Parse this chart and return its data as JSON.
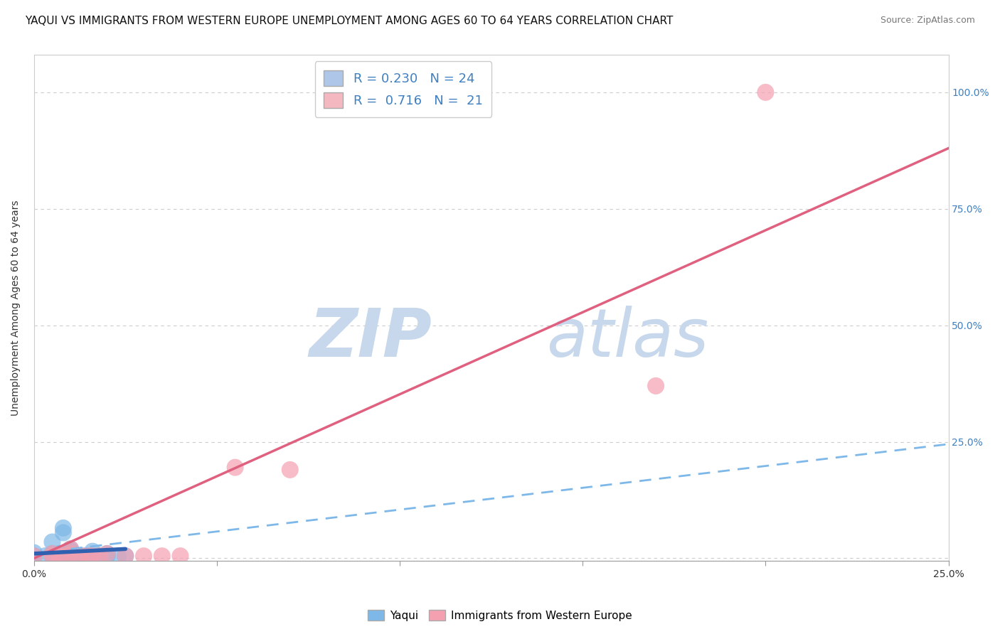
{
  "title": "YAQUI VS IMMIGRANTS FROM WESTERN EUROPE UNEMPLOYMENT AMONG AGES 60 TO 64 YEARS CORRELATION CHART",
  "source": "Source: ZipAtlas.com",
  "ylabel": "Unemployment Among Ages 60 to 64 years",
  "xlim": [
    0.0,
    0.25
  ],
  "ylim": [
    -0.005,
    1.08
  ],
  "xticks": [
    0.0,
    0.05,
    0.1,
    0.15,
    0.2,
    0.25
  ],
  "xticklabels": [
    "0.0%",
    "",
    "",
    "",
    "",
    "25.0%"
  ],
  "yticks": [
    0.0,
    0.25,
    0.5,
    0.75,
    1.0
  ],
  "yticklabels_right": [
    "",
    "25.0%",
    "50.0%",
    "75.0%",
    "100.0%"
  ],
  "watermark_zip": "ZIP",
  "watermark_atlas": "atlas",
  "legend_entries": [
    {
      "label_r": "R = 0.230",
      "label_n": "N = 24",
      "color": "#aec6e8"
    },
    {
      "label_r": "R =  0.716",
      "label_n": "N =  21",
      "color": "#f4b8c1"
    }
  ],
  "yaqui_scatter_x": [
    0.0,
    0.0,
    0.003,
    0.005,
    0.005,
    0.005,
    0.007,
    0.007,
    0.008,
    0.008,
    0.01,
    0.01,
    0.01,
    0.01,
    0.012,
    0.013,
    0.014,
    0.015,
    0.016,
    0.018,
    0.02,
    0.02,
    0.023,
    0.025
  ],
  "yaqui_scatter_y": [
    0.005,
    0.012,
    0.005,
    0.005,
    0.01,
    0.035,
    0.005,
    0.01,
    0.055,
    0.065,
    0.005,
    0.01,
    0.015,
    0.02,
    0.005,
    0.005,
    0.005,
    0.005,
    0.015,
    0.005,
    0.005,
    0.01,
    0.005,
    0.005
  ],
  "immigrants_scatter_x": [
    0.0,
    0.005,
    0.005,
    0.007,
    0.008,
    0.01,
    0.01,
    0.012,
    0.013,
    0.015,
    0.016,
    0.018,
    0.02,
    0.025,
    0.03,
    0.035,
    0.04,
    0.055,
    0.07,
    0.17,
    0.2
  ],
  "immigrants_scatter_y": [
    0.005,
    0.005,
    0.01,
    0.005,
    0.005,
    0.01,
    0.02,
    0.005,
    0.005,
    0.005,
    0.005,
    0.005,
    0.01,
    0.005,
    0.005,
    0.005,
    0.005,
    0.195,
    0.19,
    0.37,
    1.0
  ],
  "yaqui_line_x": [
    0.0,
    0.025
  ],
  "yaqui_line_y": [
    0.01,
    0.02
  ],
  "yaqui_dash_line_x": [
    0.01,
    0.25
  ],
  "yaqui_dash_line_y": [
    0.02,
    0.245
  ],
  "immigrants_line_x": [
    0.0,
    0.25
  ],
  "immigrants_line_y": [
    0.0,
    0.88
  ],
  "scatter_color_yaqui": "#7eb8e8",
  "scatter_color_immigrants": "#f4a0b0",
  "line_color_yaqui_solid": "#3060b0",
  "line_color_yaqui_dash": "#7eb8e8",
  "line_color_immigrants": "#e06080",
  "grid_color": "#cccccc",
  "background_color": "#ffffff",
  "title_fontsize": 11,
  "axis_label_fontsize": 10,
  "tick_fontsize": 10,
  "watermark_fontsize_zip": 68,
  "watermark_fontsize_atlas": 68,
  "watermark_color": "#c8d8ec",
  "right_yaxis_color": "#4080c0"
}
